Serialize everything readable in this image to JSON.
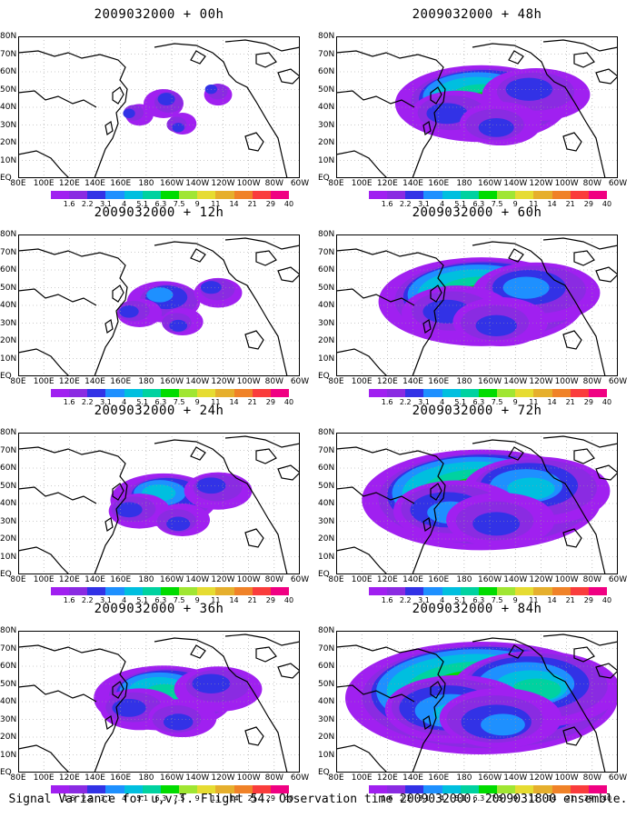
{
  "panels": [
    {
      "title": "2009032000 + 00h"
    },
    {
      "title": "2009032000 + 48h"
    },
    {
      "title": "2009032000 + 12h"
    },
    {
      "title": "2009032000 + 60h"
    },
    {
      "title": "2009032000 + 24h"
    },
    {
      "title": "2009032000 + 72h"
    },
    {
      "title": "2009032000 + 36h"
    },
    {
      "title": "2009032000 + 84h"
    }
  ],
  "lat_labels": [
    "80N",
    "70N",
    "60N",
    "50N",
    "40N",
    "30N",
    "20N",
    "10N",
    "EQ"
  ],
  "lon_labels": [
    "80E",
    "100E",
    "120E",
    "140E",
    "160E",
    "180",
    "160W",
    "140W",
    "120W",
    "100W",
    "80W",
    "60W"
  ],
  "colorbar": {
    "labels": [
      "1.6",
      "2.2",
      "3.1",
      "4",
      "5.1",
      "6.3",
      "7.5",
      "9",
      "11",
      "14",
      "21",
      "29",
      "40"
    ],
    "colors": [
      "#a020f0",
      "#8a2be2",
      "#3232e6",
      "#1e90ff",
      "#00bfdf",
      "#00d2a0",
      "#00dc00",
      "#a0e632",
      "#e6dc32",
      "#e6af2d",
      "#f08228",
      "#fa3c3c",
      "#f00082"
    ]
  },
  "caption": "Signal Variance for u,v,T. Flight 54. Observation time 2009032000. 2009031800 ensemble."
}
